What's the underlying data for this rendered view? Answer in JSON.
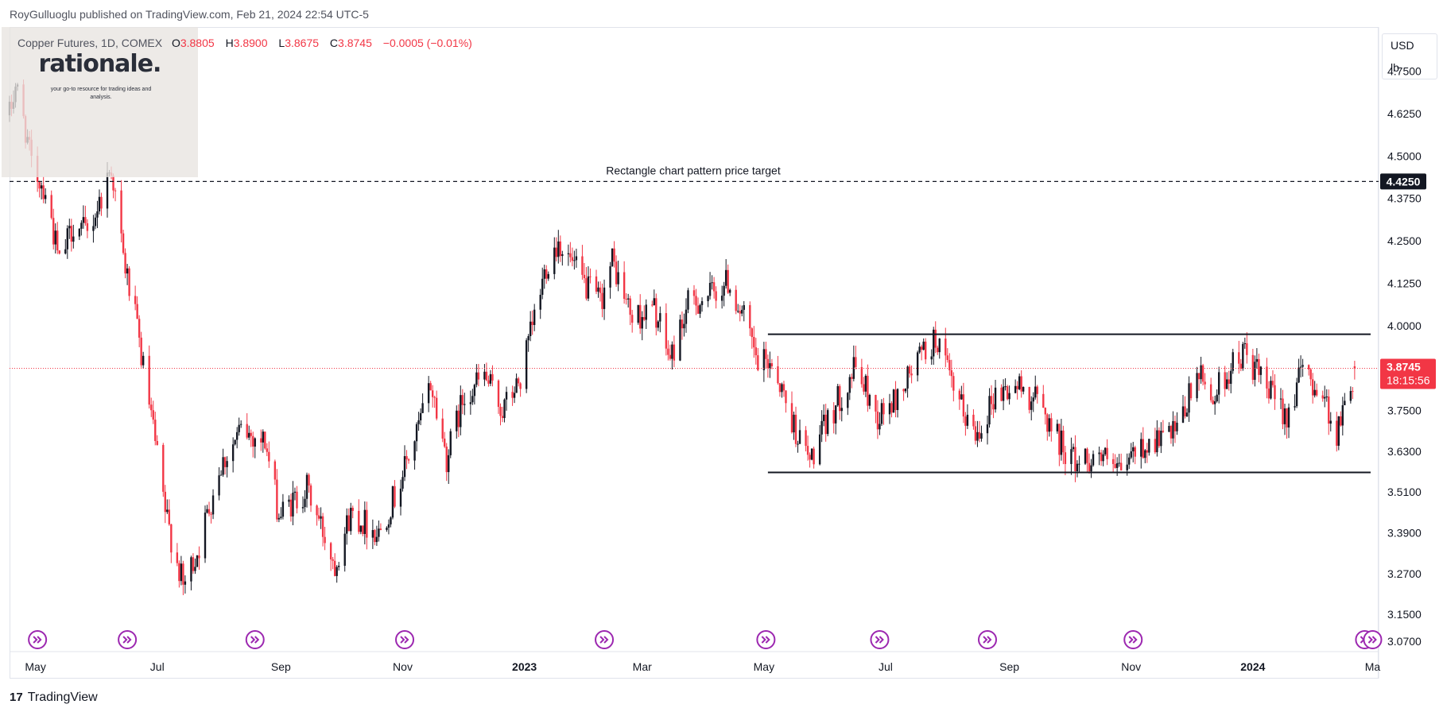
{
  "publisher_line": "RoyGulluoglu published on TradingView.com, Feb 21, 2024 22:54 UTC-5",
  "symbol": "Copper Futures, 1D, COMEX",
  "ohlc": [
    {
      "key": "O",
      "value": "3.8805"
    },
    {
      "key": "H",
      "value": "3.8900"
    },
    {
      "key": "L",
      "value": "3.8675"
    },
    {
      "key": "C",
      "value": "3.8745"
    }
  ],
  "change": "−0.0005 (−0.01%)",
  "logo": {
    "word": "rationale.",
    "tagline": "your go-to resource for trading ideas and analysis."
  },
  "currency": {
    "label": "USD",
    "unit": "lb"
  },
  "footer": {
    "brand": "TradingView",
    "mark": "17"
  },
  "colors": {
    "up": "#131722",
    "down": "#f23645",
    "last_price_bg": "#f23645",
    "target_bg": "#131722",
    "grid_border": "#e0e3eb"
  },
  "chart_data": {
    "type": "candlestick",
    "title": "Copper Futures, 1D, COMEX",
    "y_ticks": [
      "4.7500",
      "4.6250",
      "4.5000",
      "4.3750",
      "4.2500",
      "4.1250",
      "4.0000",
      "3.7500",
      "3.6300",
      "3.5100",
      "3.3900",
      "3.2700",
      "3.1500",
      "3.0700"
    ],
    "y_range": [
      3.04,
      4.88
    ],
    "x_ticks": [
      {
        "label": "May",
        "bold": false
      },
      {
        "label": "Jul",
        "bold": false
      },
      {
        "label": "Sep",
        "bold": false
      },
      {
        "label": "Nov",
        "bold": false
      },
      {
        "label": "2023",
        "bold": true
      },
      {
        "label": "Mar",
        "bold": false
      },
      {
        "label": "May",
        "bold": false
      },
      {
        "label": "Jul",
        "bold": false
      },
      {
        "label": "Sep",
        "bold": false
      },
      {
        "label": "Nov",
        "bold": false
      },
      {
        "label": "2024",
        "bold": true
      },
      {
        "label": "Ma",
        "bold": false
      }
    ],
    "x_range": [
      "2022-04-18",
      "2024-03-04"
    ],
    "price_path": [
      [
        "2022-04-18",
        4.62
      ],
      [
        "2022-04-21",
        4.71
      ],
      [
        "2022-04-26",
        4.58
      ],
      [
        "2022-04-29",
        4.47
      ],
      [
        "2022-05-06",
        4.4
      ],
      [
        "2022-05-13",
        4.18
      ],
      [
        "2022-05-20",
        4.3
      ],
      [
        "2022-05-27",
        4.27
      ],
      [
        "2022-06-03",
        4.38
      ],
      [
        "2022-06-08",
        4.47
      ],
      [
        "2022-06-14",
        4.2
      ],
      [
        "2022-06-20",
        4.02
      ],
      [
        "2022-06-28",
        3.73
      ],
      [
        "2022-07-05",
        3.45
      ],
      [
        "2022-07-14",
        3.23
      ],
      [
        "2022-07-22",
        3.35
      ],
      [
        "2022-08-01",
        3.58
      ],
      [
        "2022-08-12",
        3.69
      ],
      [
        "2022-08-24",
        3.66
      ],
      [
        "2022-08-31",
        3.44
      ],
      [
        "2022-09-14",
        3.52
      ],
      [
        "2022-09-28",
        3.3
      ],
      [
        "2022-10-06",
        3.45
      ],
      [
        "2022-10-20",
        3.39
      ],
      [
        "2022-10-28",
        3.5
      ],
      [
        "2022-11-08",
        3.68
      ],
      [
        "2022-11-15",
        3.83
      ],
      [
        "2022-11-23",
        3.61
      ],
      [
        "2022-12-02",
        3.8
      ],
      [
        "2022-12-12",
        3.85
      ],
      [
        "2022-12-21",
        3.75
      ],
      [
        "2022-12-30",
        3.84
      ],
      [
        "2023-01-12",
        4.18
      ],
      [
        "2023-01-18",
        4.25
      ],
      [
        "2023-01-31",
        4.12
      ],
      [
        "2023-02-08",
        4.07
      ],
      [
        "2023-02-14",
        4.19
      ],
      [
        "2023-02-24",
        4.02
      ],
      [
        "2023-03-07",
        4.05
      ],
      [
        "2023-03-15",
        3.9
      ],
      [
        "2023-03-24",
        4.06
      ],
      [
        "2023-04-04",
        4.09
      ],
      [
        "2023-04-13",
        4.13
      ],
      [
        "2023-04-21",
        4.02
      ],
      [
        "2023-04-28",
        3.88
      ],
      [
        "2023-05-05",
        3.9
      ],
      [
        "2023-05-15",
        3.72
      ],
      [
        "2023-05-24",
        3.6
      ],
      [
        "2023-06-02",
        3.72
      ],
      [
        "2023-06-16",
        3.88
      ],
      [
        "2023-06-27",
        3.73
      ],
      [
        "2023-07-06",
        3.78
      ],
      [
        "2023-07-18",
        3.91
      ],
      [
        "2023-07-27",
        3.96
      ],
      [
        "2023-08-04",
        3.8
      ],
      [
        "2023-08-15",
        3.68
      ],
      [
        "2023-08-25",
        3.8
      ],
      [
        "2023-09-05",
        3.82
      ],
      [
        "2023-09-15",
        3.78
      ],
      [
        "2023-09-26",
        3.66
      ],
      [
        "2023-10-04",
        3.6
      ],
      [
        "2023-10-16",
        3.62
      ],
      [
        "2023-10-26",
        3.56
      ],
      [
        "2023-11-03",
        3.63
      ],
      [
        "2023-11-15",
        3.67
      ],
      [
        "2023-11-24",
        3.68
      ],
      [
        "2023-12-04",
        3.86
      ],
      [
        "2023-12-12",
        3.79
      ],
      [
        "2023-12-20",
        3.87
      ],
      [
        "2023-12-28",
        3.92
      ],
      [
        "2024-01-08",
        3.81
      ],
      [
        "2024-01-18",
        3.74
      ],
      [
        "2024-01-26",
        3.87
      ],
      [
        "2024-02-05",
        3.8
      ],
      [
        "2024-02-12",
        3.68
      ],
      [
        "2024-02-21",
        3.87
      ]
    ],
    "annotations": {
      "price_target_label": "Rectangle chart pattern price target",
      "price_target_value": 4.425,
      "price_target_tag": "4.4250",
      "rectangle": {
        "top": 3.975,
        "bottom": 3.568,
        "start": "2023-05-03",
        "end": "2024-02-29"
      },
      "last_price": 3.8745,
      "last_price_tag": "3.8745",
      "countdown": "18:15:56"
    },
    "events": [
      "2022-05-02",
      "2022-06-16",
      "2022-08-19",
      "2022-11-02",
      "2023-02-10",
      "2023-05-02",
      "2023-06-28",
      "2023-08-21",
      "2023-11-02",
      "2024-02-26",
      "2024-03-01"
    ]
  }
}
